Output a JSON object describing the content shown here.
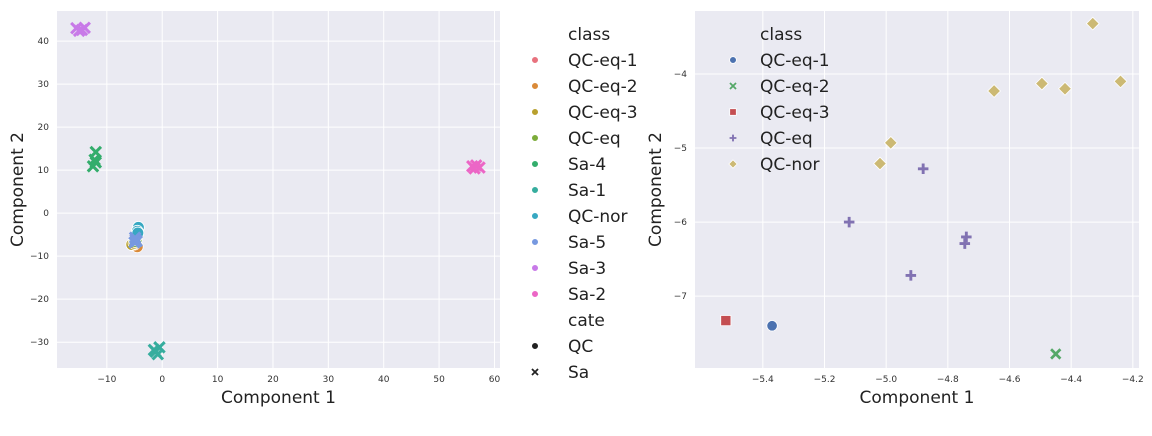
{
  "chart_data": [
    {
      "type": "scatter",
      "xlabel": "Component 1",
      "ylabel": "Component 2",
      "xlim": [
        -19,
        61
      ],
      "ylim": [
        -36,
        47
      ],
      "xticks": [
        -10,
        0,
        10,
        20,
        30,
        40,
        50,
        60
      ],
      "yticks": [
        -30,
        -20,
        -10,
        0,
        10,
        20,
        30,
        40
      ],
      "xtick_labels": [
        "−10",
        "0",
        "10",
        "20",
        "30",
        "40",
        "50",
        "60"
      ],
      "ytick_labels": [
        "−30",
        "−20",
        "−10",
        "0",
        "10",
        "20",
        "30",
        "40"
      ],
      "grid": true,
      "legend_placement": "outside-right",
      "legend": {
        "hue_title": "class",
        "hue_entries": [
          {
            "label": "QC-eq-1",
            "color": "#e8727e"
          },
          {
            "label": "QC-eq-2",
            "color": "#da8a38"
          },
          {
            "label": "QC-eq-3",
            "color": "#b8a02e"
          },
          {
            "label": "QC-eq",
            "color": "#7cac3a"
          },
          {
            "label": "Sa-4",
            "color": "#33ad6c"
          },
          {
            "label": "Sa-1",
            "color": "#36ad9e"
          },
          {
            "label": "QC-nor",
            "color": "#37a8c2"
          },
          {
            "label": "Sa-5",
            "color": "#7799e0"
          },
          {
            "label": "Sa-3",
            "color": "#c87ae8"
          },
          {
            "label": "Sa-2",
            "color": "#ec66c6"
          }
        ],
        "style_title": "cate",
        "style_entries": [
          {
            "label": "QC",
            "marker": "circle"
          },
          {
            "label": "Sa",
            "marker": "x"
          }
        ]
      },
      "series": [
        {
          "name": "QC-eq-1",
          "color": "#e8727e",
          "marker": "circle",
          "points": [
            [
              -5.4,
              -7.4
            ]
          ]
        },
        {
          "name": "QC-eq-2",
          "color": "#da8a38",
          "marker": "circle",
          "points": [
            [
              -4.5,
              -7.8
            ],
            [
              -5.0,
              -7.2
            ]
          ]
        },
        {
          "name": "QC-eq-3",
          "color": "#b8a02e",
          "marker": "circle",
          "points": [
            [
              -5.5,
              -7.3
            ],
            [
              -5.1,
              -7.0
            ]
          ]
        },
        {
          "name": "QC-eq",
          "color": "#7cac3a",
          "marker": "circle",
          "points": [
            [
              -4.9,
              -6.6
            ],
            [
              -4.7,
              -6.2
            ]
          ]
        },
        {
          "name": "Sa-4",
          "color": "#33ad6c",
          "marker": "x",
          "points": [
            [
              -12.0,
              14.2
            ],
            [
              -12.2,
              12.4
            ],
            [
              -12.5,
              10.9
            ],
            [
              -12.0,
              11.8
            ]
          ]
        },
        {
          "name": "Sa-1",
          "color": "#36ad9e",
          "marker": "x",
          "points": [
            [
              -1.2,
              -32.2
            ],
            [
              -0.5,
              -31.2
            ],
            [
              -0.8,
              -32.8
            ],
            [
              -1.5,
              -31.8
            ]
          ]
        },
        {
          "name": "QC-nor",
          "color": "#37a8c2",
          "marker": "circle",
          "points": [
            [
              -4.3,
              -3.3
            ],
            [
              -4.5,
              -4.2
            ],
            [
              -4.6,
              -4.9
            ],
            [
              -4.7,
              -5.4
            ],
            [
              -4.4,
              -4.6
            ]
          ]
        },
        {
          "name": "Sa-5",
          "color": "#7799e0",
          "marker": "x",
          "points": [
            [
              -4.8,
              -6.2
            ],
            [
              -5.0,
              -6.8
            ],
            [
              -4.9,
              -5.7
            ],
            [
              -4.6,
              -6.5
            ]
          ]
        },
        {
          "name": "Sa-3",
          "color": "#c87ae8",
          "marker": "x",
          "points": [
            [
              -15.5,
              43.0
            ],
            [
              -14.5,
              42.6
            ],
            [
              -14.0,
              43.1
            ],
            [
              -15.0,
              42.4
            ]
          ]
        },
        {
          "name": "Sa-2",
          "color": "#ec66c6",
          "marker": "x",
          "points": [
            [
              56.0,
              10.9
            ],
            [
              57.3,
              10.6
            ],
            [
              56.7,
              11.1
            ],
            [
              56.4,
              10.4
            ]
          ]
        }
      ]
    },
    {
      "type": "scatter",
      "xlabel": "Component 1",
      "ylabel": "Component 2",
      "xlim": [
        -5.62,
        -4.18
      ],
      "ylim": [
        -7.97,
        -3.15
      ],
      "xticks": [
        -5.4,
        -5.2,
        -5.0,
        -4.8,
        -4.6,
        -4.4,
        -4.2
      ],
      "yticks": [
        -7,
        -6,
        -5,
        -4
      ],
      "xtick_labels": [
        "−5.4",
        "−5.2",
        "−5.0",
        "−4.8",
        "−4.6",
        "−4.4",
        "−4.2"
      ],
      "ytick_labels": [
        "−7",
        "−6",
        "−5",
        "−4"
      ],
      "grid": true,
      "legend_placement": "upper-left",
      "legend": {
        "hue_title": "class",
        "hue_entries": [
          {
            "label": "QC-eq-1",
            "color": "#4c72b0",
            "marker": "circle"
          },
          {
            "label": "QC-eq-2",
            "color": "#55a868",
            "marker": "x"
          },
          {
            "label": "QC-eq-3",
            "color": "#c44e52",
            "marker": "square"
          },
          {
            "label": "QC-eq",
            "color": "#8172b2",
            "marker": "plus"
          },
          {
            "label": "QC-nor",
            "color": "#ccb974",
            "marker": "diamond"
          }
        ]
      },
      "series": [
        {
          "name": "QC-eq-1",
          "color": "#4c72b0",
          "marker": "circle",
          "points": [
            [
              -5.37,
              -7.4
            ]
          ]
        },
        {
          "name": "QC-eq-2",
          "color": "#55a868",
          "marker": "x",
          "points": [
            [
              -4.45,
              -7.78
            ]
          ]
        },
        {
          "name": "QC-eq-3",
          "color": "#c44e52",
          "marker": "square",
          "points": [
            [
              -5.52,
              -7.33
            ]
          ]
        },
        {
          "name": "QC-eq",
          "color": "#8172b2",
          "marker": "plus",
          "points": [
            [
              -5.12,
              -6.0
            ],
            [
              -4.88,
              -5.28
            ],
            [
              -4.92,
              -6.72
            ],
            [
              -4.74,
              -6.2
            ],
            [
              -4.745,
              -6.29
            ]
          ]
        },
        {
          "name": "QC-nor",
          "color": "#ccb974",
          "marker": "diamond",
          "points": [
            [
              -4.33,
              -3.32
            ],
            [
              -4.24,
              -4.1
            ],
            [
              -4.495,
              -4.13
            ],
            [
              -4.42,
              -4.2
            ],
            [
              -4.65,
              -4.23
            ],
            [
              -4.985,
              -4.93
            ],
            [
              -5.02,
              -5.21
            ]
          ]
        }
      ]
    }
  ]
}
